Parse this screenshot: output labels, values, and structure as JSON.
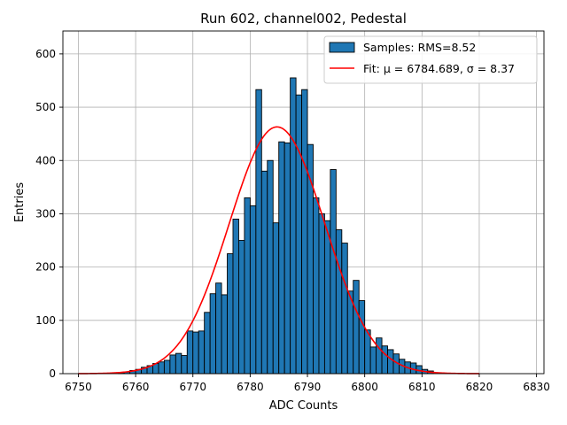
{
  "chart_data": {
    "type": "bar",
    "title": "Run 602, channel002, Pedestal",
    "xlabel": "ADC Counts",
    "ylabel": "Entries",
    "xlim": [
      6747.3,
      6831.3
    ],
    "ylim": [
      0,
      643
    ],
    "xticks": [
      6750,
      6760,
      6770,
      6780,
      6790,
      6800,
      6810,
      6820,
      6830
    ],
    "yticks": [
      0,
      100,
      200,
      300,
      400,
      500,
      600
    ],
    "grid": true,
    "legend_position": "top-right",
    "bar_color": "#1f77b4",
    "fit_color": "#ff0000",
    "bins": {
      "start": 6757,
      "width": 1,
      "counts": [
        2,
        3,
        6,
        8,
        12,
        15,
        19,
        22,
        25,
        35,
        38,
        34,
        80,
        78,
        80,
        115,
        150,
        170,
        148,
        225,
        290,
        250,
        330,
        315,
        533,
        380,
        400,
        283,
        435,
        433,
        555,
        523,
        533,
        430,
        330,
        300,
        287,
        383,
        270,
        245,
        155,
        175,
        137,
        82,
        50,
        67,
        52,
        45,
        37,
        27,
        22,
        20,
        15,
        8,
        5
      ]
    },
    "series": [
      {
        "name": "Samples: RMS=8.52",
        "type": "histogram"
      },
      {
        "name": "Fit: μ = 6784.689, σ = 8.37",
        "type": "line",
        "mu": 6784.689,
        "sigma": 8.37,
        "amplitude": 463,
        "x_range": [
          6750,
          6820
        ]
      }
    ]
  }
}
